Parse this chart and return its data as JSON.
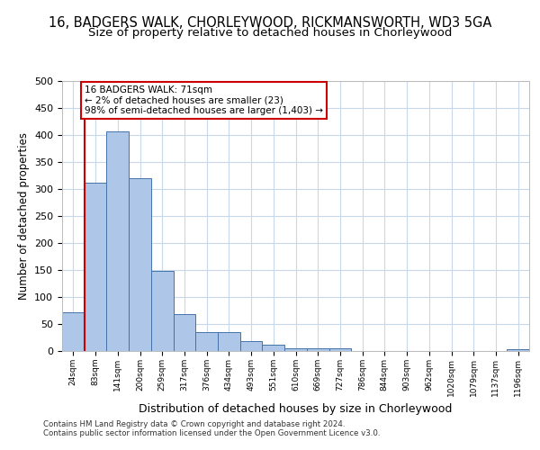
{
  "title_line1": "16, BADGERS WALK, CHORLEYWOOD, RICKMANSWORTH, WD3 5GA",
  "title_line2": "Size of property relative to detached houses in Chorleywood",
  "xlabel": "Distribution of detached houses by size in Chorleywood",
  "ylabel": "Number of detached properties",
  "categories": [
    "24sqm",
    "83sqm",
    "141sqm",
    "200sqm",
    "259sqm",
    "317sqm",
    "376sqm",
    "434sqm",
    "493sqm",
    "551sqm",
    "610sqm",
    "669sqm",
    "727sqm",
    "786sqm",
    "844sqm",
    "903sqm",
    "962sqm",
    "1020sqm",
    "1079sqm",
    "1137sqm",
    "1196sqm"
  ],
  "values": [
    72,
    311,
    407,
    320,
    148,
    69,
    35,
    35,
    18,
    11,
    5,
    5,
    5,
    0,
    0,
    0,
    0,
    0,
    0,
    0,
    4
  ],
  "bar_color": "#aec6e8",
  "bar_edge_color": "#4472a8",
  "annotation_text": "16 BADGERS WALK: 71sqm\n← 2% of detached houses are smaller (23)\n98% of semi-detached houses are larger (1,403) →",
  "annotation_box_color": "#ffffff",
  "annotation_box_edge": "#cc0000",
  "footer_line1": "Contains HM Land Registry data © Crown copyright and database right 2024.",
  "footer_line2": "Contains public sector information licensed under the Open Government Licence v3.0.",
  "ylim": [
    0,
    500
  ],
  "yticks": [
    0,
    50,
    100,
    150,
    200,
    250,
    300,
    350,
    400,
    450,
    500
  ],
  "grid_color": "#c8d8e8",
  "background_color": "#ffffff",
  "title_fontsize": 10.5,
  "subtitle_fontsize": 9.5
}
